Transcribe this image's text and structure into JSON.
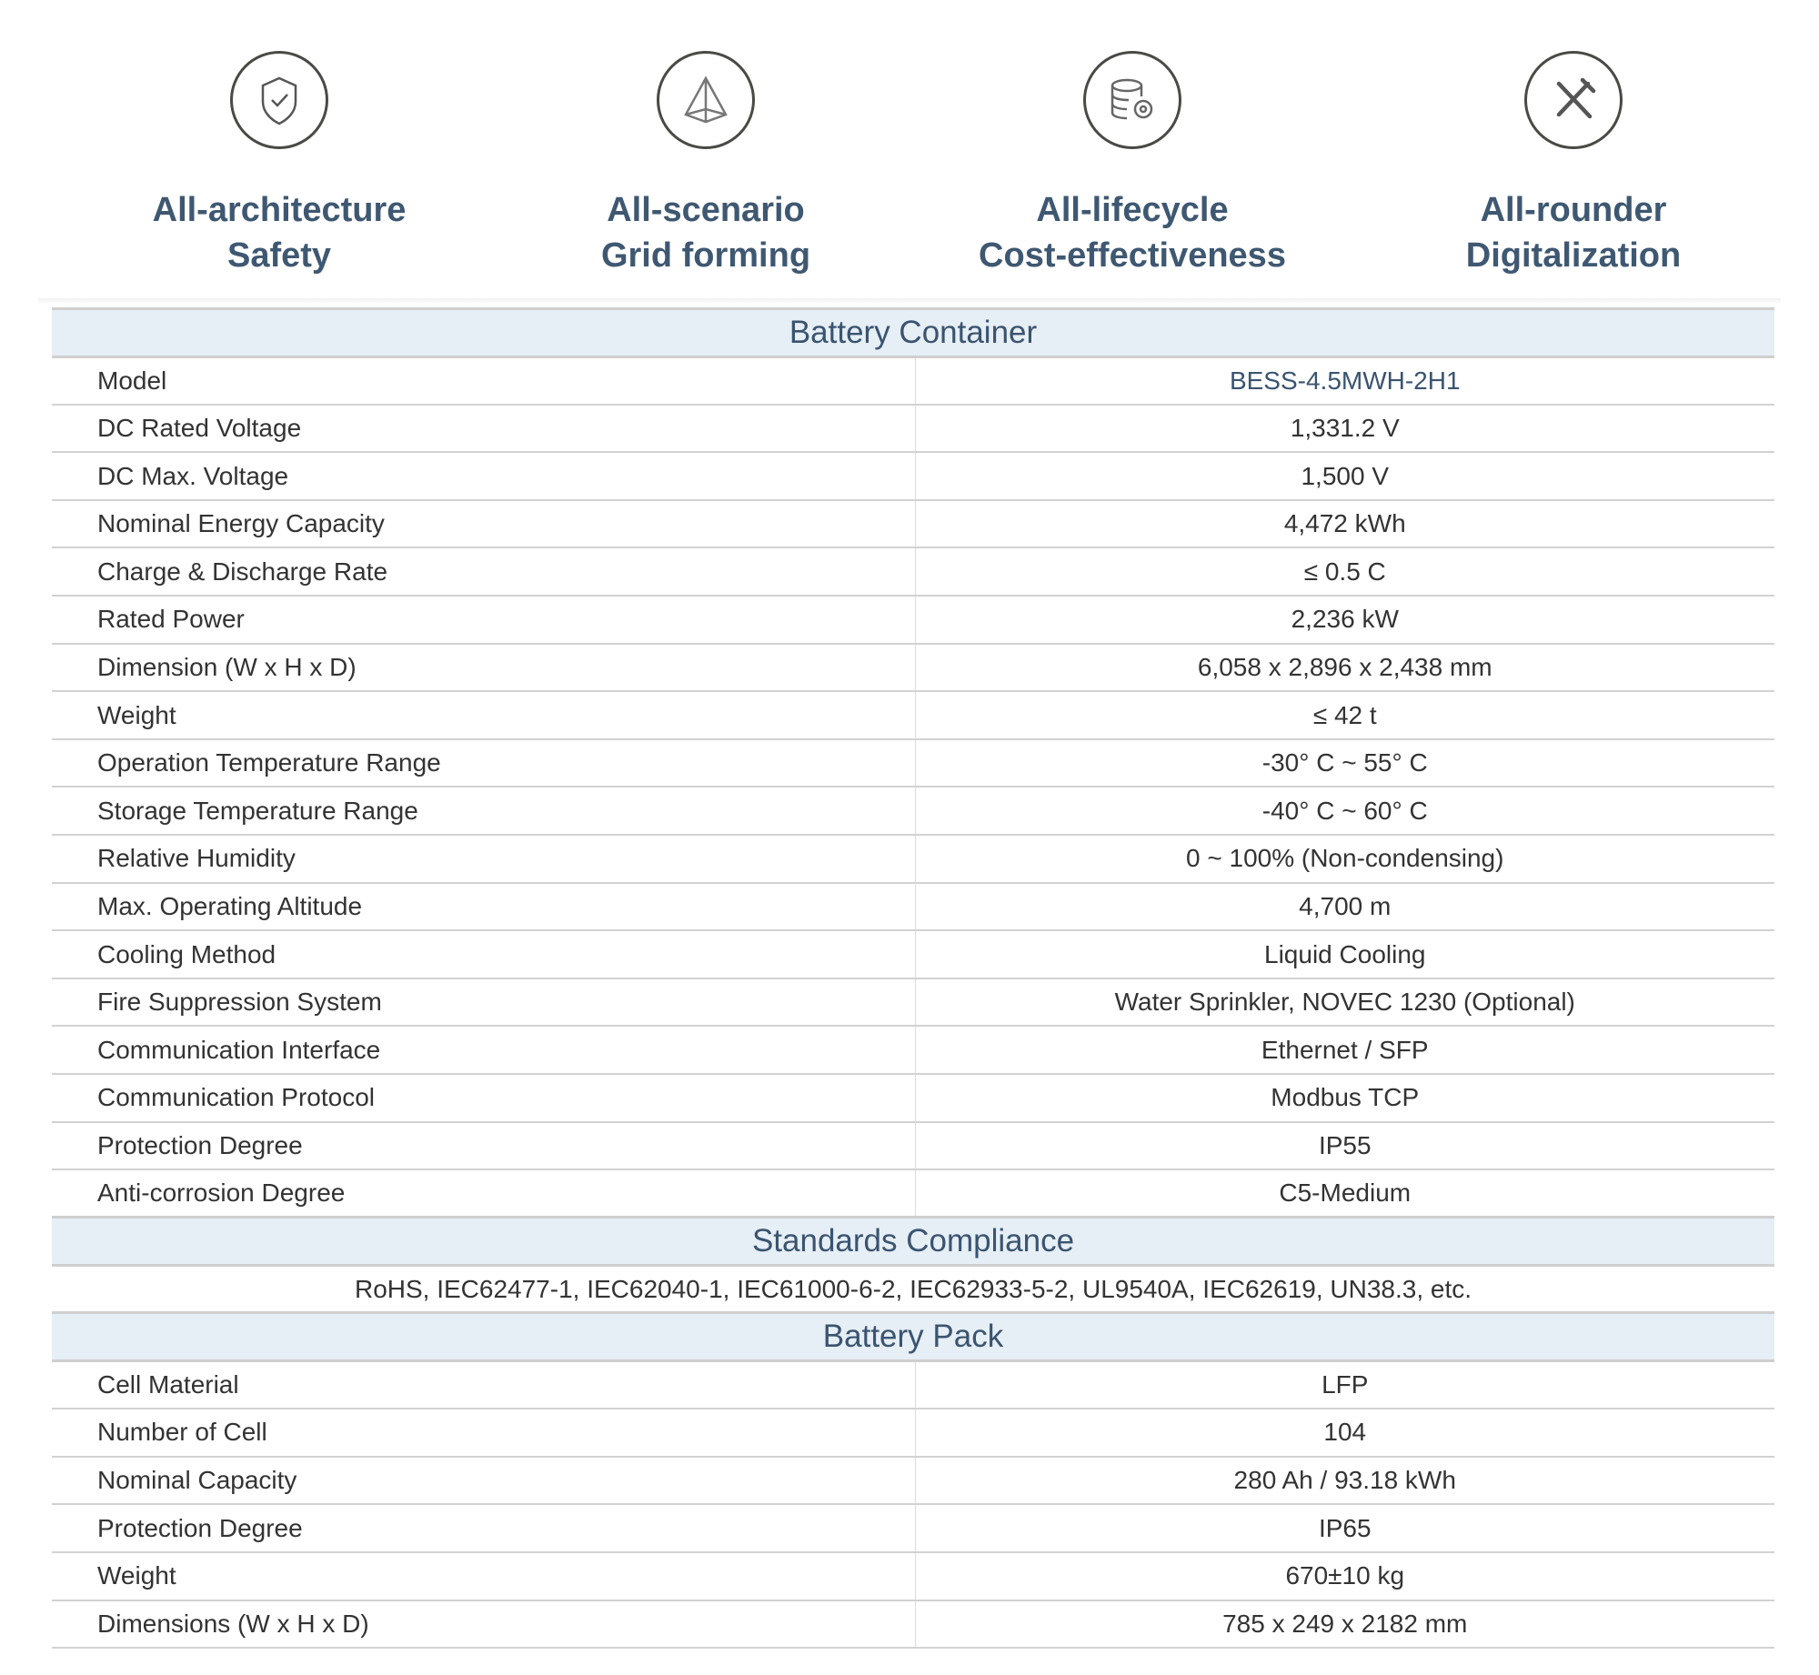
{
  "features": [
    {
      "icon": "shield-check-icon",
      "line1": "All-architecture",
      "line2": "Safety"
    },
    {
      "icon": "pyramid-icon",
      "line1": "All-scenario",
      "line2": "Grid forming"
    },
    {
      "icon": "database-gear-icon",
      "line1": "All-lifecycle",
      "line2": "Cost-effectiveness"
    },
    {
      "icon": "tools-icon",
      "line1": "All-rounder",
      "line2": "Digitalization"
    }
  ],
  "battery_container": {
    "title": "Battery Container",
    "rows": [
      [
        "Model",
        "BESS-4.5MWH-2H1"
      ],
      [
        "DC Rated Voltage",
        "1,331.2 V"
      ],
      [
        "DC Max. Voltage",
        "1,500 V"
      ],
      [
        "Nominal Energy Capacity",
        "4,472 kWh"
      ],
      [
        "Charge & Discharge Rate",
        "≤ 0.5 C"
      ],
      [
        "Rated Power",
        "2,236 kW"
      ],
      [
        "Dimension (W x H x D)",
        "6,058 x 2,896 x 2,438 mm"
      ],
      [
        "Weight",
        "≤ 42 t"
      ],
      [
        "Operation Temperature Range",
        "-30° C ~ 55° C"
      ],
      [
        "Storage Temperature Range",
        "-40° C ~ 60° C"
      ],
      [
        "Relative Humidity",
        "0 ~ 100% (Non-condensing)"
      ],
      [
        "Max. Operating Altitude",
        "4,700 m"
      ],
      [
        "Cooling Method",
        "Liquid Cooling"
      ],
      [
        "Fire Suppression System",
        "Water Sprinkler, NOVEC 1230 (Optional)"
      ],
      [
        "Communication Interface",
        "Ethernet / SFP"
      ],
      [
        "Communication Protocol",
        "Modbus TCP"
      ],
      [
        "Protection Degree",
        "IP55"
      ],
      [
        "Anti-corrosion Degree",
        "C5-Medium"
      ]
    ]
  },
  "standards": {
    "title": "Standards Compliance",
    "text": "RoHS, IEC62477-1, IEC62040-1, IEC61000-6-2, IEC62933-5-2, UL9540A,  IEC62619, UN38.3, etc."
  },
  "battery_pack": {
    "title": "Battery Pack",
    "rows": [
      [
        "Cell Material",
        "LFP"
      ],
      [
        "Number of Cell",
        "104"
      ],
      [
        "Nominal Capacity",
        "280 Ah / 93.18 kWh"
      ],
      [
        "Protection Degree",
        "IP65"
      ],
      [
        "Weight",
        "670±10 kg"
      ],
      [
        "Dimensions (W x H x D)",
        "785 x 249 x 2182 mm"
      ]
    ]
  }
}
